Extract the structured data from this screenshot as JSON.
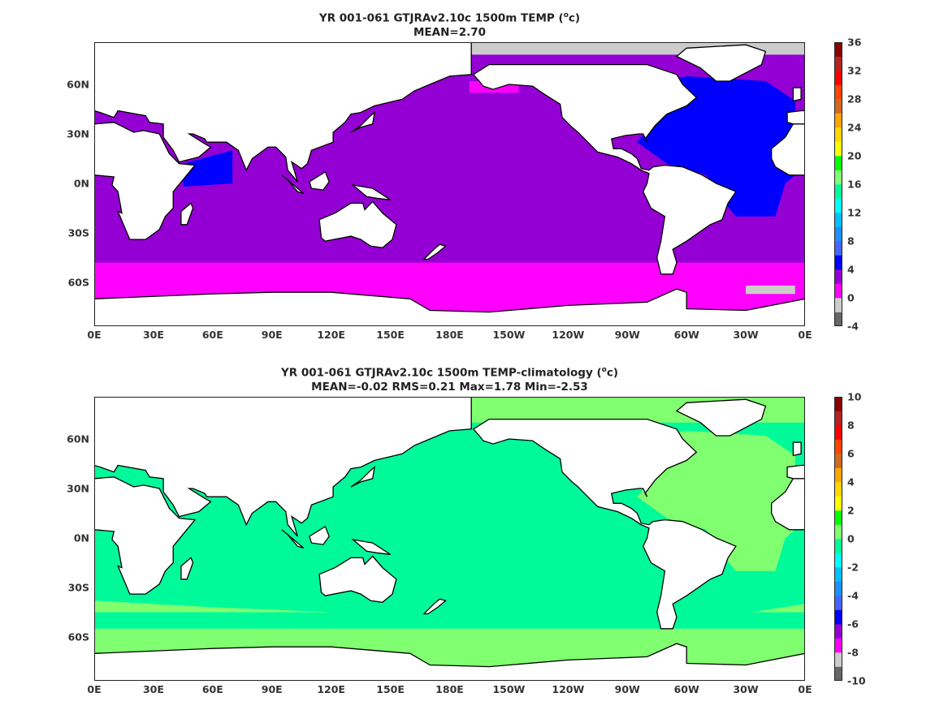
{
  "panels": [
    {
      "title_line1": "YR 001-061 GTJRAv2.10c 1500m TEMP (",
      "title_sup": "o",
      "title_unit": "c)",
      "title_line2": "MEAN=2.70",
      "colorbar": {
        "ticks": [
          "36",
          "32",
          "28",
          "24",
          "20",
          "16",
          "12",
          "8",
          "4",
          "0",
          "-4"
        ]
      }
    },
    {
      "title_line1": "YR 001-061 GTJRAv2.10c 1500m TEMP-climatology (",
      "title_sup": "o",
      "title_unit": "c)",
      "title_line2": "MEAN=-0.02   RMS=0.21   Max=1.78   Min=-2.53",
      "colorbar": {
        "ticks": [
          "10",
          "8",
          "6",
          "4",
          "2",
          "0",
          "-2",
          "-4",
          "-6",
          "-8",
          "-10"
        ]
      }
    }
  ],
  "axes": {
    "x_ticks": [
      "0E",
      "30E",
      "60E",
      "90E",
      "120E",
      "150E",
      "180E",
      "150W",
      "120W",
      "90W",
      "60W",
      "30W",
      "0E"
    ],
    "y_ticks": [
      "60N",
      "30N",
      "0N",
      "30S",
      "60S"
    ]
  },
  "colormap": [
    "#666666",
    "#cccccc",
    "#ff00ff",
    "#9400d3",
    "#0000ff",
    "#4466ff",
    "#1e90ff",
    "#00bfff",
    "#00ffff",
    "#00fa9a",
    "#80ff70",
    "#00ff00",
    "#ffff00",
    "#ffd700",
    "#ffa500",
    "#d2691e",
    "#ff4500",
    "#ff0000",
    "#b22222",
    "#8b0000"
  ],
  "chart_data": [
    {
      "type": "heatmap",
      "title": "YR 001-061 GTJRAv2.10c 1500m TEMP (oc)",
      "mean": 2.7,
      "clim": [
        -4,
        36
      ],
      "xlim_lon": [
        0,
        360
      ],
      "ylabels": [
        "60N",
        "30N",
        "0N",
        "30S",
        "60S"
      ]
    },
    {
      "type": "heatmap",
      "title": "YR 001-061 GTJRAv2.10c 1500m TEMP-climatology (oc)",
      "mean": -0.02,
      "rms": 0.21,
      "max": 1.78,
      "min": -2.53,
      "clim": [
        -10,
        10
      ],
      "xlim_lon": [
        0,
        360
      ]
    }
  ]
}
